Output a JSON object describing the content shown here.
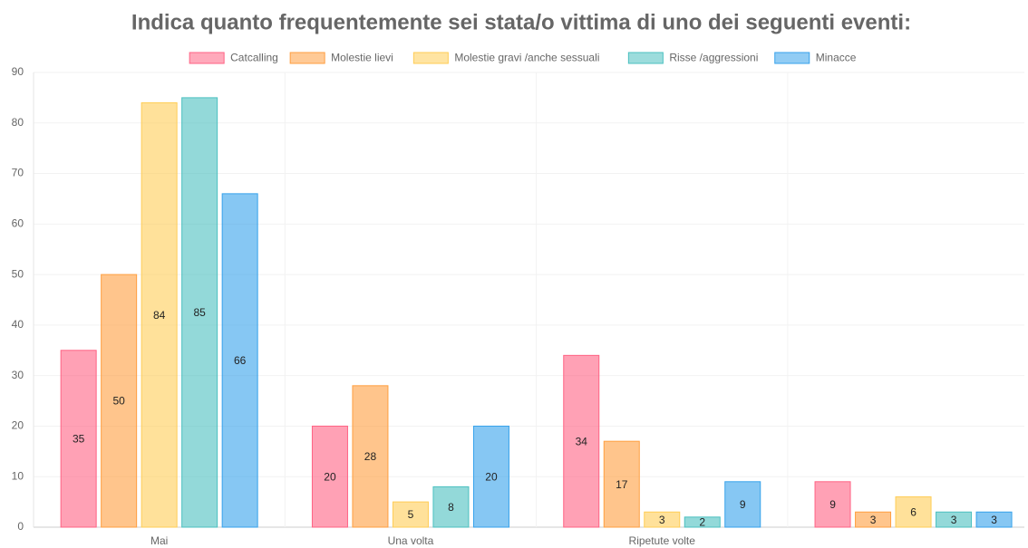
{
  "chart_data": {
    "type": "bar",
    "title": "Indica quanto frequentemente sei stata/o vittima di uno dei seguenti eventi:",
    "categories": [
      "Mai",
      "Una volta",
      "Ripetute volte",
      null
    ],
    "series": [
      {
        "name": "Catcalling",
        "color": "#ff6384",
        "values": [
          35,
          20,
          34,
          9
        ]
      },
      {
        "name": "Molestie lievi",
        "color": "#ff9f40",
        "values": [
          50,
          28,
          17,
          3
        ]
      },
      {
        "name": "Molestie gravi /anche sessuali",
        "color": "#ffcd56",
        "values": [
          84,
          5,
          3,
          6
        ]
      },
      {
        "name": "Risse /aggressioni",
        "color": "#4bc0c0",
        "values": [
          85,
          8,
          2,
          3
        ]
      },
      {
        "name": "Minacce",
        "color": "#36a2eb",
        "values": [
          66,
          20,
          9,
          3
        ]
      }
    ],
    "ylim": [
      0,
      90
    ],
    "yticks": [
      0,
      10,
      20,
      30,
      40,
      50,
      60,
      70,
      80,
      90
    ],
    "grid": true,
    "legend": "top"
  }
}
